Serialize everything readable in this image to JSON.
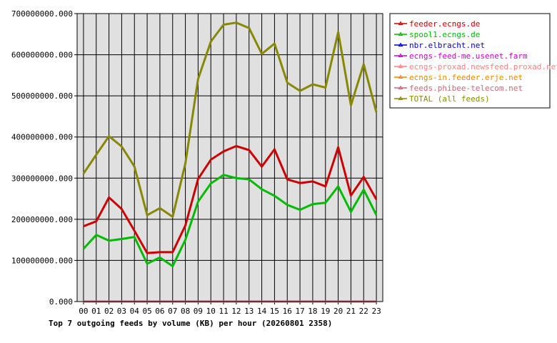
{
  "chart_data": {
    "type": "line",
    "title": "Top 7 outgoing feeds by volume (KB) per hour (20260801 2358)",
    "categories": [
      "00",
      "01",
      "02",
      "03",
      "04",
      "05",
      "06",
      "07",
      "08",
      "09",
      "10",
      "11",
      "12",
      "13",
      "14",
      "15",
      "16",
      "17",
      "18",
      "19",
      "20",
      "21",
      "22",
      "23"
    ],
    "yticks": [
      "0.000",
      "100000000.000",
      "200000000.000",
      "300000000.000",
      "400000000.000",
      "500000000.000",
      "600000000.000",
      "700000000.000"
    ],
    "ylim": [
      0,
      700000000
    ],
    "grid": true,
    "legend_position": "top-right",
    "colors": {
      "plot_bg": "#e0e0e0",
      "grid": "#000000"
    },
    "series": [
      {
        "name": "feeder.ecngs.de",
        "color": "#cc0000",
        "values": [
          183000000,
          195000000,
          253000000,
          225000000,
          172000000,
          118000000,
          120000000,
          120000000,
          185000000,
          298000000,
          345000000,
          365000000,
          378000000,
          368000000,
          328000000,
          370000000,
          297000000,
          288000000,
          292000000,
          280000000,
          375000000,
          258000000,
          303000000,
          248000000
        ]
      },
      {
        "name": "spool1.ecngs.de",
        "color": "#00bb00",
        "values": [
          128000000,
          162000000,
          148000000,
          152000000,
          157000000,
          92000000,
          107000000,
          86000000,
          150000000,
          243000000,
          287000000,
          308000000,
          300000000,
          297000000,
          273000000,
          257000000,
          235000000,
          223000000,
          237000000,
          240000000,
          280000000,
          218000000,
          272000000,
          210000000
        ]
      },
      {
        "name": "nbr.elbracht.net",
        "color": "#0000cc",
        "values": [
          0,
          0,
          0,
          0,
          0,
          0,
          0,
          0,
          0,
          0,
          0,
          0,
          0,
          0,
          0,
          0,
          0,
          0,
          0,
          0,
          0,
          0,
          0,
          0
        ]
      },
      {
        "name": "ecngs-feed-me.usenet.farm",
        "color": "#cc00cc",
        "values": [
          0,
          0,
          0,
          0,
          0,
          0,
          0,
          0,
          0,
          0,
          0,
          0,
          0,
          0,
          0,
          0,
          0,
          0,
          0,
          0,
          0,
          0,
          0,
          0
        ]
      },
      {
        "name": "ecngs-proxad.newsfeed.proxad.net",
        "color": "#ff8080",
        "values": [
          0,
          0,
          0,
          0,
          0,
          0,
          0,
          0,
          0,
          0,
          0,
          0,
          0,
          0,
          0,
          0,
          0,
          0,
          0,
          0,
          0,
          0,
          0,
          0
        ]
      },
      {
        "name": "ecngs-in.feeder.erje.net",
        "color": "#ee8800",
        "values": [
          0,
          0,
          0,
          0,
          0,
          0,
          0,
          0,
          0,
          0,
          0,
          0,
          0,
          0,
          0,
          0,
          0,
          0,
          0,
          0,
          0,
          0,
          0,
          0
        ]
      },
      {
        "name": "feeds.phibee-telecom.net",
        "color": "#cc6677",
        "values": [
          0,
          0,
          0,
          0,
          0,
          0,
          0,
          0,
          0,
          0,
          0,
          0,
          0,
          0,
          0,
          0,
          0,
          0,
          0,
          0,
          0,
          0,
          0,
          0
        ]
      },
      {
        "name": "TOTAL (all feeds)",
        "color": "#888800",
        "values": [
          311000000,
          357000000,
          402000000,
          377000000,
          328000000,
          210000000,
          227000000,
          206000000,
          336000000,
          541000000,
          632000000,
          673000000,
          678000000,
          665000000,
          602000000,
          627000000,
          532000000,
          512000000,
          528000000,
          520000000,
          655000000,
          477000000,
          577000000,
          460000000
        ]
      }
    ]
  }
}
